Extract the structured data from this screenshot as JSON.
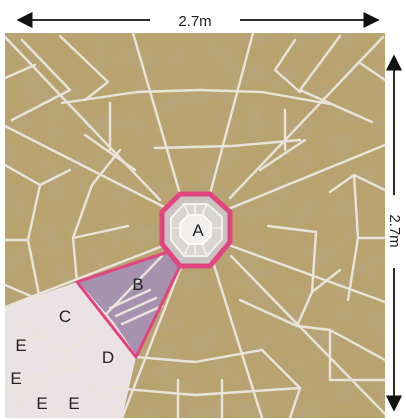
{
  "dimensions": {
    "width_label": "2.7m",
    "height_label": "2.7m"
  },
  "regions": {
    "a": "A",
    "b": "B",
    "c": "C",
    "d": "D",
    "e1": "E",
    "e2": "E",
    "e3": "E",
    "e4": "E"
  },
  "colors": {
    "stone": "#b8a26e",
    "stone_dark": "#8e7a4c",
    "joint": "#e8e4dc",
    "accent_pink": "#e0457f",
    "section_b_fill": "#a48fb6",
    "section_light_fill": "#eee6ee"
  }
}
